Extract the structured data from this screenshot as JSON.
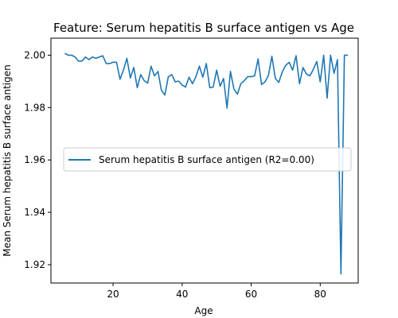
{
  "chart_data": {
    "type": "line",
    "title": "Feature: Serum hepatitis B surface antigen vs Age",
    "xlabel": "Age",
    "ylabel": "Mean Serum hepatitis B surface antigen",
    "xlim": [
      2,
      91
    ],
    "ylim": [
      1.913,
      2.0065
    ],
    "xticks": [
      20,
      40,
      60,
      80
    ],
    "yticks": [
      1.92,
      1.94,
      1.96,
      1.98,
      2.0
    ],
    "ytick_labels": [
      "1.92",
      "1.94",
      "1.96",
      "1.98",
      "2.00"
    ],
    "grid": false,
    "legend_position": "center-right",
    "series_color": "#1f77b4",
    "series": [
      {
        "name": "Serum hepatitis B surface antigen (R2=0.00)",
        "x": [
          6,
          7,
          8,
          9,
          10,
          11,
          12,
          13,
          14,
          15,
          16,
          17,
          18,
          19,
          20,
          21,
          22,
          23,
          24,
          25,
          26,
          27,
          28,
          29,
          30,
          31,
          32,
          33,
          34,
          35,
          36,
          37,
          38,
          39,
          40,
          41,
          42,
          43,
          44,
          45,
          46,
          47,
          48,
          49,
          50,
          51,
          52,
          53,
          54,
          55,
          56,
          57,
          58,
          59,
          60,
          61,
          62,
          63,
          64,
          65,
          66,
          67,
          68,
          69,
          70,
          71,
          72,
          73,
          74,
          75,
          76,
          77,
          78,
          79,
          80,
          81,
          82,
          83,
          84,
          85,
          86,
          87,
          88
        ],
        "y": [
          2.0007,
          2.0,
          2.0,
          1.9993,
          1.9977,
          1.9978,
          1.9993,
          1.9983,
          1.9993,
          1.9988,
          1.9993,
          1.9998,
          1.9968,
          1.9968,
          1.9973,
          1.9973,
          1.9908,
          1.9943,
          1.9988,
          1.9913,
          1.9953,
          1.9876,
          1.9926,
          1.9903,
          1.9893,
          1.9958,
          1.9921,
          1.9938,
          1.9866,
          1.9848,
          1.9918,
          1.9926,
          1.9898,
          1.9901,
          1.9886,
          1.9878,
          1.9916,
          1.9891,
          1.9918,
          1.9958,
          1.9916,
          1.9968,
          1.9876,
          1.9878,
          1.9943,
          1.9881,
          1.9911,
          1.9798,
          1.9938,
          1.9871,
          1.9851,
          1.9891,
          1.9903,
          1.9918,
          1.9918,
          1.9921,
          1.9986,
          1.9888,
          1.9898,
          1.9923,
          1.9996,
          1.9911,
          1.9896,
          1.9936,
          1.9961,
          1.9973,
          1.9943,
          1.9998,
          1.9891,
          1.9953,
          1.9928,
          1.9921,
          1.9946,
          1.9976,
          1.9898,
          2.0,
          1.9836,
          2.0,
          1.9931,
          1.9983,
          1.9165,
          2.0,
          2.0
        ]
      }
    ]
  }
}
